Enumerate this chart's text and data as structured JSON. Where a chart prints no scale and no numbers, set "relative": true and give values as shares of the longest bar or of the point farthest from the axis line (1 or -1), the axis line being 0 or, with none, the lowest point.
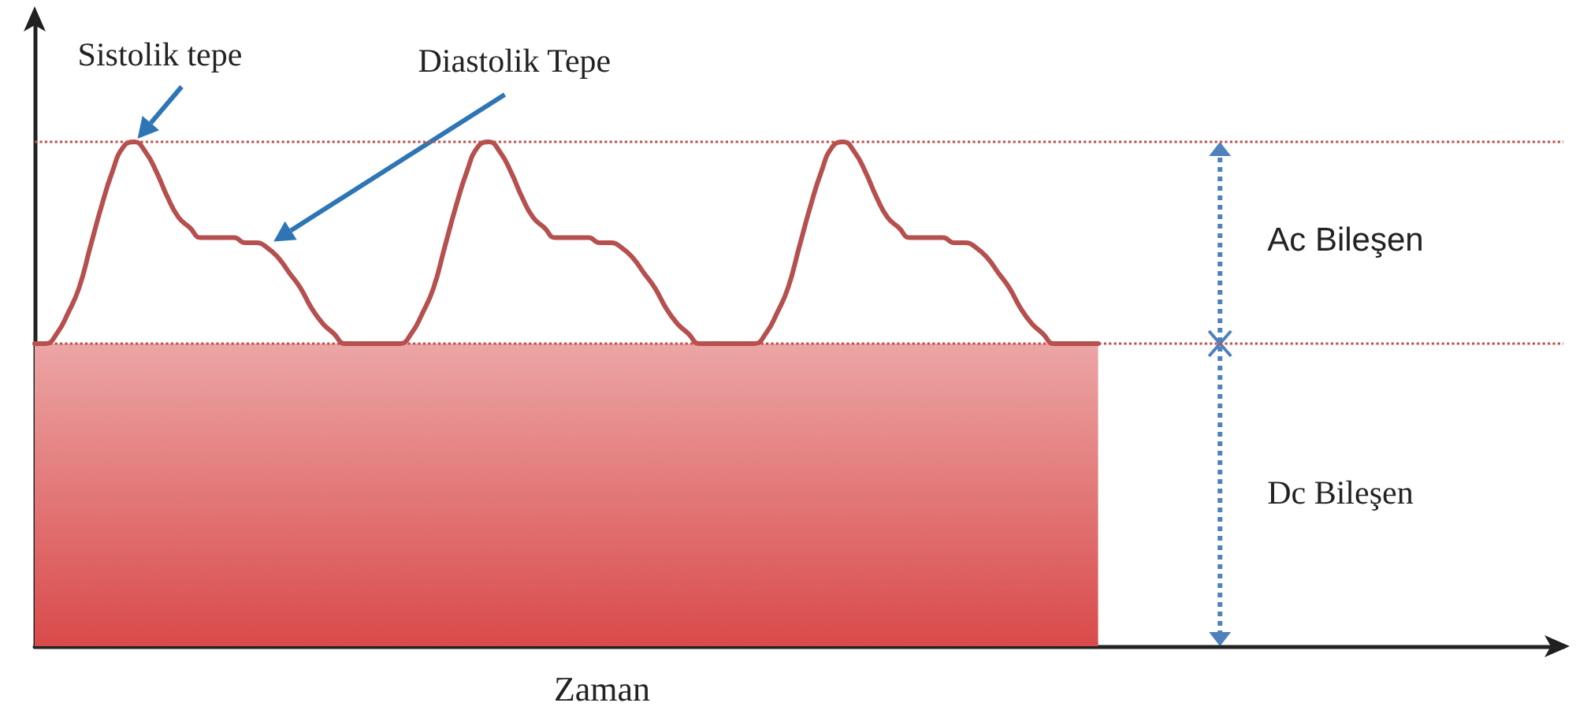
{
  "chart_data": {
    "type": "line",
    "relative": true,
    "xlabel": "Zaman",
    "grid": false,
    "line_style": "solid",
    "categories": [
      null,
      null,
      null,
      null,
      null,
      null,
      null,
      null,
      null,
      null,
      null,
      null,
      null,
      null,
      null,
      null,
      null,
      null,
      null,
      null,
      null,
      null,
      null,
      null,
      null,
      null,
      null,
      null,
      null,
      null,
      null,
      null,
      null,
      null,
      null,
      null,
      null,
      null,
      null,
      null,
      null,
      null,
      null,
      null,
      null,
      null,
      null,
      null,
      null,
      null,
      null,
      null,
      null,
      null,
      null,
      null,
      null,
      null,
      null,
      null,
      null,
      null,
      null,
      null,
      null,
      null,
      null,
      null,
      null,
      null,
      null,
      null,
      null,
      null,
      null,
      null,
      null,
      null,
      null,
      null,
      null,
      null,
      null,
      null,
      null,
      null,
      null,
      null,
      null,
      null,
      null,
      null,
      null,
      null,
      null,
      null,
      null,
      null,
      null,
      null,
      null,
      null,
      null,
      null,
      null,
      null,
      null,
      null,
      null,
      null,
      null,
      null,
      null,
      null,
      null,
      null,
      null,
      null,
      null,
      null,
      null,
      null,
      null,
      null,
      null,
      null,
      null,
      null,
      null,
      null,
      null,
      null,
      null,
      null,
      null,
      null,
      null,
      null,
      null
    ],
    "series": [
      {
        "type": "area",
        "color": "#d94a4a",
        "values": [
          0.6,
          0.6,
          0.6,
          0.6,
          0.6,
          0.6,
          0.6,
          0.6,
          0.6,
          0.6,
          0.6,
          0.6,
          0.6,
          0.6,
          0.6,
          0.6,
          0.6,
          0.6,
          0.6,
          0.6,
          0.6,
          0.6,
          0.6,
          0.6,
          0.6,
          0.6,
          0.6,
          0.6,
          0.6,
          0.6,
          0.6,
          0.6,
          0.6,
          0.6,
          0.6,
          0.6,
          0.6,
          0.6,
          0.6,
          0.6,
          0.6,
          0.6,
          0.6,
          0.6,
          0.6,
          0.6,
          0.6,
          0.6,
          0.6,
          0.6,
          0.6,
          0.6,
          0.6,
          0.6,
          0.6,
          0.6,
          0.6,
          0.6,
          0.6,
          0.6,
          0.6,
          0.6,
          0.6,
          0.6,
          0.6,
          0.6,
          0.6,
          0.6,
          0.6,
          0.6,
          0.6,
          0.6,
          0.6,
          0.6,
          0.6,
          0.6,
          0.6,
          0.6,
          0.6,
          0.6,
          0.6,
          0.6,
          0.6,
          0.6,
          0.6,
          0.6,
          0.6,
          0.6,
          0.6,
          0.6,
          0.6,
          0.6,
          0.6,
          0.6,
          0.6,
          0.6,
          0.6,
          null,
          null,
          null,
          null,
          null,
          null,
          null,
          null,
          null,
          null,
          null,
          null,
          null,
          null,
          null,
          null,
          null,
          null,
          null,
          null,
          null,
          null,
          null,
          null,
          null,
          null,
          null,
          null,
          null,
          null,
          null,
          null,
          null,
          null,
          null,
          null,
          null,
          null,
          null,
          null,
          null,
          null
        ]
      },
      {
        "type": "line",
        "color": "#b5504f",
        "values": [
          0.6,
          0.6,
          0.62,
          0.66,
          0.71,
          0.79,
          0.87,
          0.94,
          0.99,
          1,
          0.98,
          0.94,
          0.89,
          0.85,
          0.83,
          0.81,
          0.81,
          0.81,
          0.81,
          0.8,
          0.8,
          0.79,
          0.77,
          0.74,
          0.71,
          0.67,
          0.64,
          0.62,
          0.6,
          0.6,
          0.6,
          0.6,
          0.6,
          0.6,
          0.62,
          0.66,
          0.71,
          0.79,
          0.87,
          0.94,
          0.99,
          1,
          0.98,
          0.94,
          0.89,
          0.85,
          0.83,
          0.81,
          0.81,
          0.81,
          0.81,
          0.8,
          0.8,
          0.79,
          0.77,
          0.74,
          0.71,
          0.67,
          0.64,
          0.62,
          0.6,
          0.6,
          0.6,
          0.6,
          0.6,
          0.6,
          0.62,
          0.66,
          0.71,
          0.79,
          0.87,
          0.94,
          0.99,
          1,
          0.98,
          0.94,
          0.89,
          0.85,
          0.83,
          0.81,
          0.81,
          0.81,
          0.81,
          0.8,
          0.8,
          0.79,
          0.77,
          0.74,
          0.71,
          0.67,
          0.64,
          0.62,
          0.6,
          0.6,
          0.6,
          0.6,
          0.6,
          null,
          null,
          null,
          null,
          null,
          null,
          null,
          null,
          null,
          null,
          null,
          null,
          null,
          null,
          null,
          null,
          null,
          null,
          null,
          null,
          null,
          null,
          null,
          null,
          null,
          null,
          null,
          null,
          null,
          null,
          null,
          null,
          null,
          null,
          null,
          null,
          null,
          null,
          null,
          null,
          null,
          null
        ]
      }
    ],
    "ref_lines": [
      {
        "axis": "y",
        "value": 1,
        "color": "#c0504d",
        "line_style": "dotted"
      },
      {
        "axis": "y",
        "value": 0.6,
        "color": "#c0504d",
        "line_style": "dotted"
      }
    ],
    "annotations": [
      "Sistolik tepe",
      "Diastolik Tepe",
      "Ac Bileşen",
      "Dc Bileşen"
    ]
  }
}
